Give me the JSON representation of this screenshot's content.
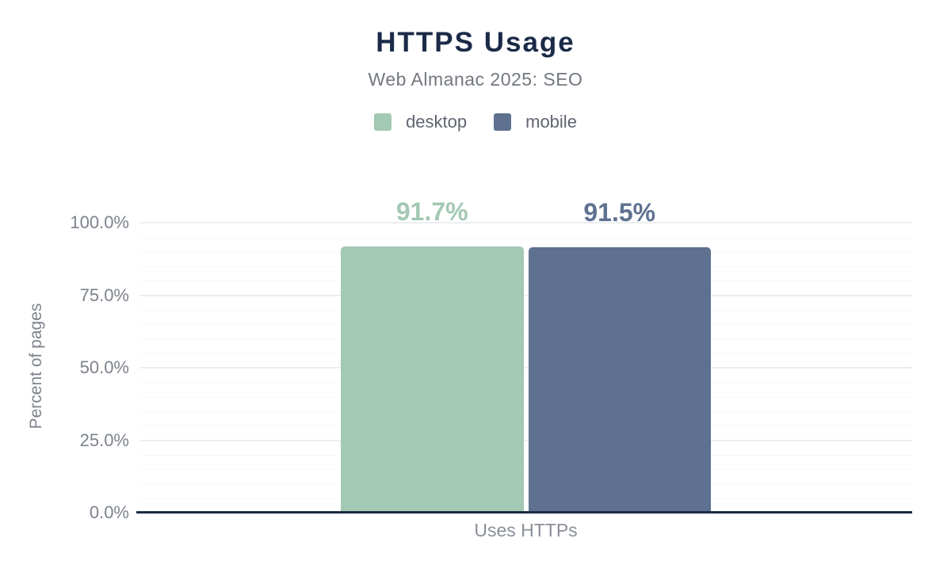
{
  "chart": {
    "title": "HTTPS Usage",
    "subtitle": "Web Almanac 2025: SEO"
  },
  "chart_data": {
    "type": "bar",
    "title": "HTTPS Usage",
    "subtitle": "Web Almanac 2025: SEO",
    "categories": [
      "Uses HTTPs"
    ],
    "series": [
      {
        "name": "desktop",
        "values": [
          91.7
        ],
        "data_label": "91.7%",
        "color": "#a3c8b3"
      },
      {
        "name": "mobile",
        "values": [
          91.5
        ],
        "data_label": "91.5%",
        "color": "#5e7190"
      }
    ],
    "xlabel": "Uses HTTPs",
    "ylabel": "Percent of pages",
    "ylim": [
      0,
      100
    ],
    "yticks": [
      {
        "value": 0,
        "label": "0.0%"
      },
      {
        "value": 25,
        "label": "25.0%"
      },
      {
        "value": 50,
        "label": "50.0%"
      },
      {
        "value": 75,
        "label": "75.0%"
      },
      {
        "value": 100,
        "label": "100.0%"
      }
    ],
    "grid": "horizontal major every 25%, minor every 5%",
    "legend_position": "top",
    "axis_line_color": "#1b2a47",
    "title_color": "#1b2a47",
    "subtitle_color": "#72777f",
    "tick_label_color": "#7d828c"
  }
}
